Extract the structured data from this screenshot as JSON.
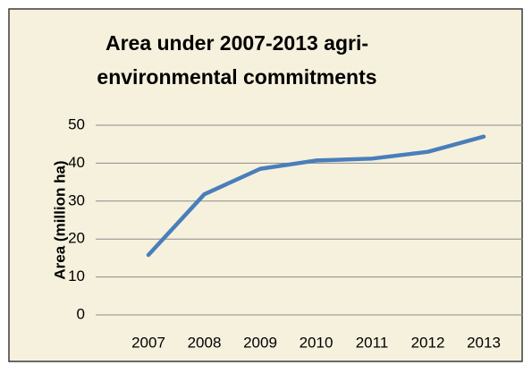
{
  "chart_data": {
    "type": "line",
    "title": [
      "Area under 2007-2013 agri-",
      "environmental commitments"
    ],
    "y_label": "Area (million ha)",
    "categories": [
      "2007",
      "2008",
      "2009",
      "2010",
      "2011",
      "2012",
      "2013"
    ],
    "series": [
      {
        "name": "Area",
        "color": "#4a7ebb",
        "values": [
          15.8,
          31.8,
          38.5,
          40.7,
          41.2,
          43.0,
          47.0
        ]
      }
    ],
    "ylim": [
      0,
      50
    ],
    "yticks": [
      0,
      10,
      20,
      30,
      40,
      50
    ],
    "grid": true,
    "legend": false
  }
}
